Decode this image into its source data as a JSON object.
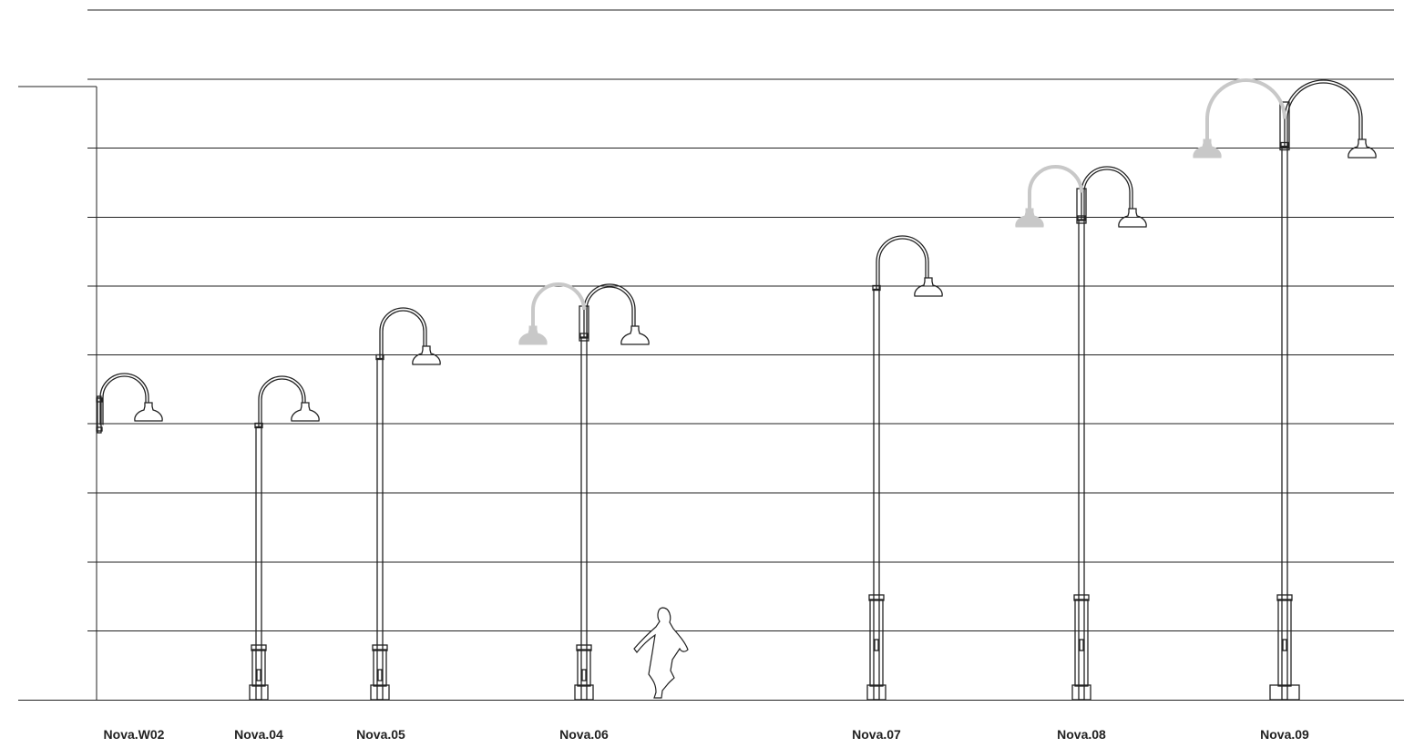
{
  "products": [
    "Nova.W02",
    "Nova.04",
    "Nova.05",
    "Nova.06",
    "Nova.07",
    "Nova.08",
    "Nova.09"
  ]
}
